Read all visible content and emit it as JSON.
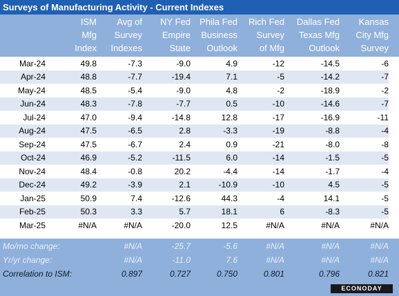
{
  "title": "Surveys of Manufacturing Activity - Current Indexes",
  "columns": [
    {
      "lines": [
        "ISM",
        "Mfg",
        "Index"
      ]
    },
    {
      "lines": [
        "Avg of",
        "Survey",
        "Indexes"
      ]
    },
    {
      "lines": [
        "NY Fed",
        "Empire",
        "State"
      ]
    },
    {
      "lines": [
        "Phila Fed",
        "Business",
        "Outlook"
      ]
    },
    {
      "lines": [
        "Rich Fed",
        "Survey",
        "of Mfg"
      ]
    },
    {
      "lines": [
        "Dallas Fed",
        "Texas Mfg",
        "Outlook"
      ]
    },
    {
      "lines": [
        "Kansas",
        "City Mfg",
        "Survey"
      ]
    }
  ],
  "rows": [
    {
      "month": "Mar-24",
      "values": [
        "49.8",
        "-7.3",
        "-9.0",
        "4.9",
        "-12",
        "-14.5",
        "-6"
      ]
    },
    {
      "month": "Apr-24",
      "values": [
        "48.8",
        "-7.7",
        "-19.4",
        "7.1",
        "-5",
        "-14.2",
        "-7"
      ]
    },
    {
      "month": "May-24",
      "values": [
        "48.5",
        "-5.4",
        "-9.0",
        "4.8",
        "-2",
        "-18.9",
        "-2"
      ]
    },
    {
      "month": "Jun-24",
      "values": [
        "48.3",
        "-7.8",
        "-7.7",
        "0.5",
        "-10",
        "-14.6",
        "-7"
      ]
    },
    {
      "month": "Jul-24",
      "values": [
        "47.0",
        "-9.4",
        "-14.8",
        "12.8",
        "-17",
        "-16.9",
        "-11"
      ]
    },
    {
      "month": "Aug-24",
      "values": [
        "47.5",
        "-6.5",
        "2.8",
        "-3.3",
        "-19",
        "-8.8",
        "-4"
      ]
    },
    {
      "month": "Sep-24",
      "values": [
        "47.5",
        "-6.7",
        "2.4",
        "0.9",
        "-21",
        "-8.0",
        "-8"
      ]
    },
    {
      "month": "Oct-24",
      "values": [
        "46.9",
        "-5.2",
        "-11.5",
        "6.0",
        "-14",
        "-1.5",
        "-5"
      ]
    },
    {
      "month": "Nov-24",
      "values": [
        "48.4",
        "-0.8",
        "20.2",
        "-4.4",
        "-14",
        "-1.7",
        "-4"
      ]
    },
    {
      "month": "Dec-24",
      "values": [
        "49.2",
        "-3.9",
        "2.1",
        "-10.9",
        "-10",
        "4.5",
        "-5"
      ]
    },
    {
      "month": "Jan-25",
      "values": [
        "50.9",
        "7.4",
        "-12.6",
        "44.3",
        "-4",
        "14.1",
        "-5"
      ]
    },
    {
      "month": "Feb-25",
      "values": [
        "50.3",
        "3.3",
        "5.7",
        "18.1",
        "6",
        "-8.3",
        "-5"
      ]
    },
    {
      "month": "Mar-25",
      "values": [
        "#N/A",
        "#N/A",
        "-20.0",
        "12.5",
        "#N/A",
        "#N/A",
        "#N/A"
      ]
    }
  ],
  "footer": [
    {
      "label": "Mo/mo change:",
      "values": [
        "",
        "#N/A",
        "-25.7",
        "-5.6",
        "#N/A",
        "#N/A",
        "#N/A"
      ]
    },
    {
      "label": "Yr/yr change:",
      "values": [
        "",
        "#N/A",
        "-11.0",
        "7.6",
        "#N/A",
        "#N/A",
        "#N/A"
      ]
    },
    {
      "label": "Correlation to ISM:",
      "values": [
        "",
        "0.897",
        "0.727",
        "0.750",
        "0.801",
        "0.796",
        "0.821"
      ]
    }
  ],
  "logo": "ECONODAY",
  "colors": {
    "title_bg": "#1f5fb4",
    "header_bg": "#8fb0db",
    "row_shade": "#dfe7f3"
  }
}
